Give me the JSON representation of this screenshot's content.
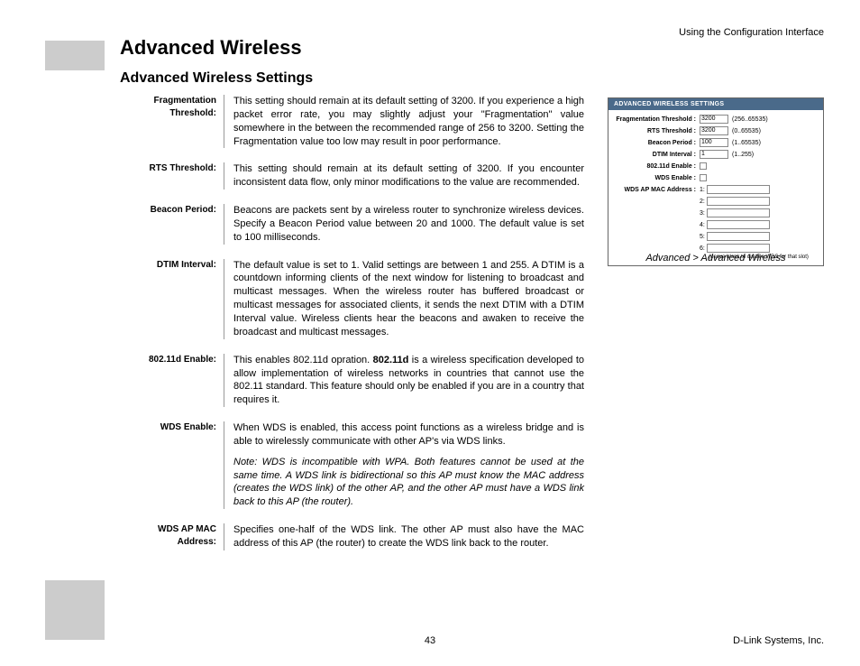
{
  "header_right": "Using the Configuration Interface",
  "main_title": "Advanced Wireless",
  "sub_title": "Advanced Wireless Settings",
  "grey_block_color": "#cccccc",
  "definitions": [
    {
      "label": "Fragmentation\nThreshold:",
      "body": "This setting should remain at its default setting of 3200. If you experience a high packet error rate, you may slightly adjust your \"Fragmentation\" value somewhere in the between the recommended range of 256 to 3200. Setting the Fragmentation value too low may result in poor performance."
    },
    {
      "label": "RTS Threshold:",
      "body": "This setting should remain at its default setting of 3200. If you encounter inconsistent data flow, only minor modifications to the value are recommended."
    },
    {
      "label": "Beacon Period:",
      "body": "Beacons are packets sent by a wireless router to synchronize wireless devices. Specify a Beacon Period value between 20 and 1000. The default value is set to 100 milliseconds."
    },
    {
      "label": "DTIM Interval:",
      "body": "The default value is set to 1. Valid settings are between 1 and 255. A DTIM is a countdown informing clients of the next window for listening to broadcast and multicast messages. When the wireless router has buffered broadcast or multicast messages for associated clients, it sends the next DTIM with a DTIM Interval value. Wireless clients hear the beacons and awaken to receive the broadcast and multicast messages."
    },
    {
      "label": "802.11d Enable:",
      "body_pre": "This enables 802.11d opration. ",
      "body_bold": "802.11d",
      "body_post": " is a wireless specification developed to allow implementation of wireless networks in countries that cannot use the 802.11 standard. This feature should only be enabled if you are in a country that requires it."
    },
    {
      "label": "WDS Enable:",
      "body": "When WDS is enabled, this access point functions as a wireless bridge and is able to wirelessly communicate with other AP's via WDS links.",
      "note": "Note: WDS is incompatible with WPA. Both features cannot be used at the same time. A WDS link is bidirectional so this AP must know the MAC address (creates the WDS link) of the other AP, and the other AP must have a WDS link back to this AP (the router)."
    },
    {
      "label": "WDS AP MAC Address:",
      "body": "Specifies one-half of the WDS link. The other AP must also have the MAC address of this AP (the router) to create the WDS link back to the router."
    }
  ],
  "panel": {
    "header_bg": "#4a6a8a",
    "header_color": "#ffffff",
    "header": "ADVANCED WIRELESS SETTINGS",
    "rows": [
      {
        "label": "Fragmentation Threshold :",
        "value": "3200",
        "range": "(256..65535)"
      },
      {
        "label": "RTS Threshold :",
        "value": "3200",
        "range": "(0..65535)"
      },
      {
        "label": "Beacon Period :",
        "value": "100",
        "range": "(1..65535)"
      },
      {
        "label": "DTIM Interval :",
        "value": "1",
        "range": "(1..255)"
      },
      {
        "label": "802.11d Enable :",
        "type": "check"
      },
      {
        "label": "WDS Enable :",
        "type": "check"
      },
      {
        "label": "WDS AP MAC Address :",
        "type": "mac",
        "idx": "1:"
      },
      {
        "label": "",
        "type": "mac",
        "idx": "2:"
      },
      {
        "label": "",
        "type": "mac",
        "idx": "3:"
      },
      {
        "label": "",
        "type": "mac",
        "idx": "4:"
      },
      {
        "label": "",
        "type": "mac",
        "idx": "5:"
      },
      {
        "label": "",
        "type": "mac",
        "idx": "6:"
      }
    ],
    "footnote": "(Leave blank to disable WDS for that slot)"
  },
  "panel_caption": "Advanced > Advanced Wireless",
  "footer_page": "43",
  "footer_right": "D-Link Systems, Inc."
}
